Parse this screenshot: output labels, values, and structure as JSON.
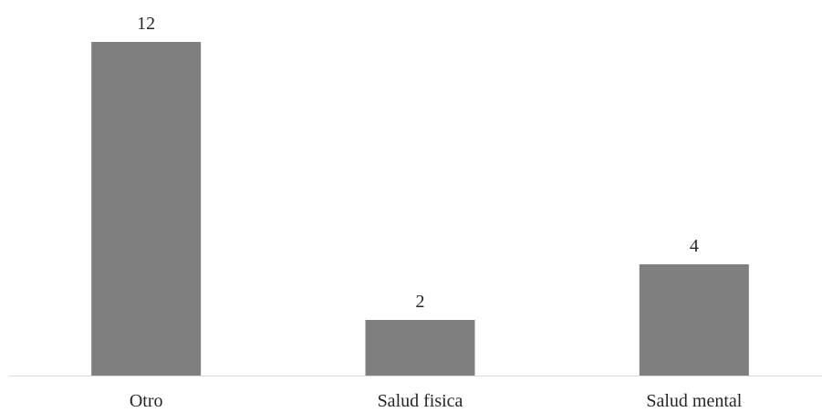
{
  "chart_data": {
    "type": "bar",
    "title": "",
    "xlabel": "",
    "ylabel": "",
    "categories": [
      "Otro",
      "Salud fisica",
      "Salud mental"
    ],
    "values": [
      12,
      2,
      4
    ],
    "data_labels": [
      "12",
      "2",
      "4"
    ],
    "ylim": [
      0,
      12
    ],
    "grid": false,
    "legend": "none",
    "bar_color": "#7f7f7f",
    "axis_color": "#d9d9d9",
    "text_color": "#262626"
  }
}
